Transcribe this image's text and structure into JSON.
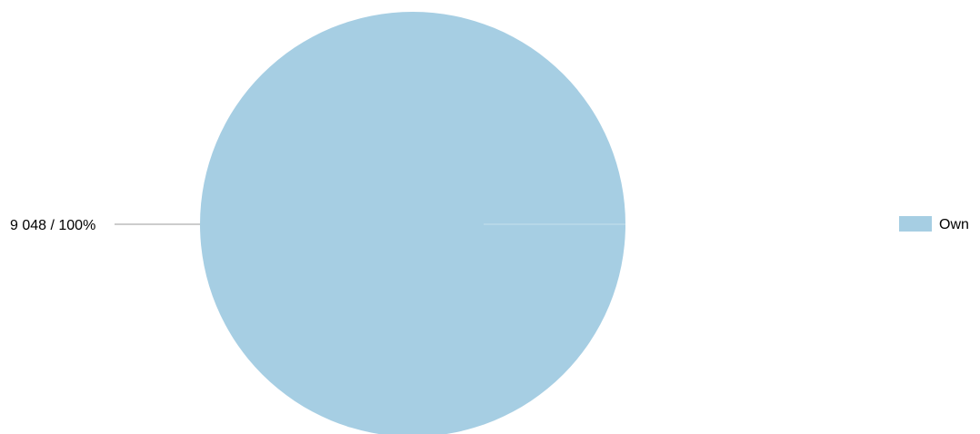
{
  "chart_data": {
    "type": "pie",
    "title": "",
    "series": [
      {
        "name": "Own",
        "value": 9048,
        "percent": 100,
        "label": "9 048 / 100%",
        "color": "#a6cee3"
      }
    ],
    "legend": {
      "placement": "right",
      "items": [
        "Own"
      ]
    },
    "colors": {
      "slice_fill": "#a6cee3",
      "leader_line": "#999999",
      "background": "#ffffff"
    }
  }
}
